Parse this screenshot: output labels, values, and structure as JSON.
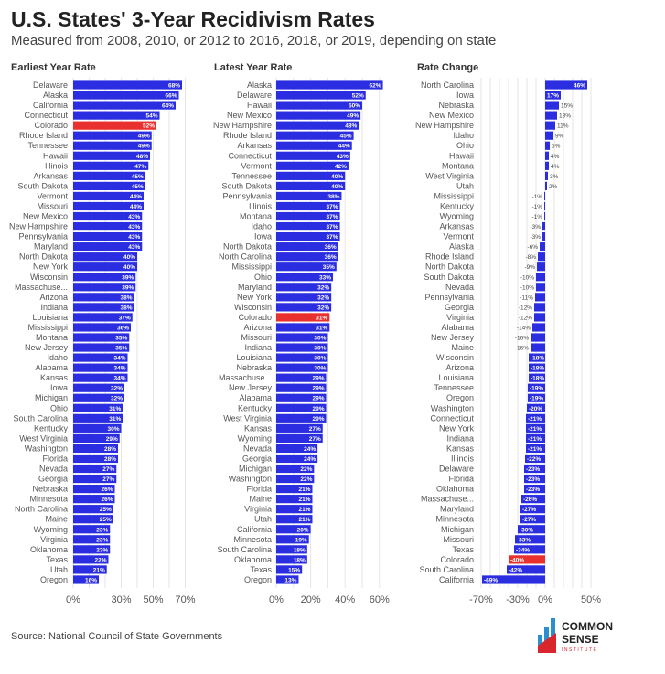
{
  "title": "U.S. States' 3-Year Recidivism Rates",
  "subtitle": "Measured from 2008, 2010, or 2012 to 2016, 2018, or 2019, depending on state",
  "source": "Source: National Council of State Governments",
  "logo": {
    "line1": "COMMON",
    "line2": "SENSE",
    "line3": "INSTITUTE"
  },
  "colors": {
    "bar": "#2b2ee0",
    "highlight": "#e8302e",
    "grid": "#e6e6e6"
  },
  "highlight_category": "Colorado",
  "chart_data": [
    {
      "type": "bar",
      "orientation": "horizontal",
      "title": "Earliest Year Rate",
      "xticks": [
        "0%",
        "30%",
        "50%",
        "70%"
      ],
      "xlim": [
        0,
        70
      ],
      "grid": true,
      "categories": [
        "Delaware",
        "Alaska",
        "California",
        "Connecticut",
        "Colorado",
        "Rhode Island",
        "Tennessee",
        "Hawaii",
        "Illinois",
        "Arkansas",
        "South Dakota",
        "Vermont",
        "Missouri",
        "New Mexico",
        "New Hampshire",
        "Pennsylvania",
        "Maryland",
        "North Dakota",
        "New York",
        "Wisconsin",
        "Massachuse...",
        "Arizona",
        "Indiana",
        "Louisiana",
        "Mississippi",
        "Montana",
        "New Jersey",
        "Idaho",
        "Alabama",
        "Kansas",
        "Iowa",
        "Michigan",
        "Ohio",
        "South Carolina",
        "Kentucky",
        "West Virginia",
        "Washington",
        "Florida",
        "Nevada",
        "Georgia",
        "Nebraska",
        "Minnesota",
        "North Carolina",
        "Maine",
        "Wyoming",
        "Virginia",
        "Oklahoma",
        "Texas",
        "Utah",
        "Oregon"
      ],
      "values": [
        68,
        66,
        64,
        54,
        52,
        49,
        49,
        48,
        47,
        45,
        45,
        44,
        44,
        43,
        43,
        43,
        43,
        40,
        40,
        39,
        39,
        38,
        38,
        37,
        36,
        35,
        35,
        34,
        34,
        34,
        32,
        32,
        31,
        31,
        30,
        29,
        28,
        28,
        27,
        27,
        26,
        26,
        25,
        25,
        23,
        23,
        23,
        22,
        21,
        16
      ]
    },
    {
      "type": "bar",
      "orientation": "horizontal",
      "title": "Latest Year Rate",
      "xticks": [
        "0%",
        "20%",
        "40%",
        "60%"
      ],
      "xlim": [
        0,
        65
      ],
      "grid": true,
      "categories": [
        "Alaska",
        "Delaware",
        "Hawaii",
        "New Mexico",
        "New Hampshire",
        "Rhode Island",
        "Arkansas",
        "Connecticut",
        "Vermont",
        "Tennessee",
        "South Dakota",
        "Pennsylvania",
        "Illinois",
        "Montana",
        "Idaho",
        "Iowa",
        "North Dakota",
        "North Carolina",
        "Mississippi",
        "Ohio",
        "Maryland",
        "New York",
        "Wisconsin",
        "Colorado",
        "Arizona",
        "Missouri",
        "Indiana",
        "Louisiana",
        "Nebraska",
        "Massachuse...",
        "New Jersey",
        "Alabama",
        "Kentucky",
        "West Virginia",
        "Kansas",
        "Wyoming",
        "Nevada",
        "Georgia",
        "Michigan",
        "Washington",
        "Florida",
        "Maine",
        "Virginia",
        "Utah",
        "California",
        "Minnesota",
        "South Carolina",
        "Oklahoma",
        "Texas",
        "Oregon"
      ],
      "values": [
        62,
        52,
        50,
        49,
        48,
        45,
        44,
        43,
        42,
        40,
        40,
        38,
        37,
        37,
        37,
        37,
        36,
        36,
        35,
        33,
        32,
        32,
        32,
        31,
        31,
        30,
        30,
        30,
        30,
        29,
        29,
        29,
        29,
        29,
        27,
        27,
        24,
        24,
        22,
        22,
        21,
        21,
        21,
        21,
        20,
        19,
        18,
        18,
        15,
        13
      ]
    },
    {
      "type": "bar",
      "orientation": "horizontal",
      "title": "Rate Change",
      "xticks": [
        "-70%",
        "-30%",
        "0%",
        "50%"
      ],
      "xlim": [
        -70,
        55
      ],
      "grid": true,
      "categories": [
        "North Carolina",
        "Iowa",
        "Nebraska",
        "New Mexico",
        "New Hampshire",
        "Idaho",
        "Ohio",
        "Hawaii",
        "Montana",
        "West Virginia",
        "Utah",
        "Mississippi",
        "Kentucky",
        "Wyoming",
        "Arkansas",
        "Vermont",
        "Alaska",
        "Rhode Island",
        "North Dakota",
        "South Dakota",
        "Nevada",
        "Pennsylvania",
        "Georgia",
        "Virginia",
        "Alabama",
        "New Jersey",
        "Maine",
        "Wisconsin",
        "Arizona",
        "Louisiana",
        "Tennessee",
        "Oregon",
        "Washington",
        "Connecticut",
        "New York",
        "Indiana",
        "Kansas",
        "Illinois",
        "Delaware",
        "Florida",
        "Oklahoma",
        "Massachuse...",
        "Maryland",
        "Minnesota",
        "Michigan",
        "Missouri",
        "Texas",
        "Colorado",
        "South Carolina",
        "California"
      ],
      "values": [
        46,
        17,
        15,
        13,
        11,
        9,
        5,
        4,
        4,
        3,
        2,
        -1,
        -1,
        -1,
        -3,
        -3,
        -6,
        -8,
        -9,
        -10,
        -10,
        -11,
        -12,
        -12,
        -14,
        -16,
        -16,
        -18,
        -18,
        -18,
        -19,
        -19,
        -20,
        -21,
        -21,
        -21,
        -21,
        -22,
        -23,
        -23,
        -23,
        -26,
        -27,
        -27,
        -30,
        -33,
        -34,
        -40,
        -42,
        -69
      ]
    }
  ]
}
